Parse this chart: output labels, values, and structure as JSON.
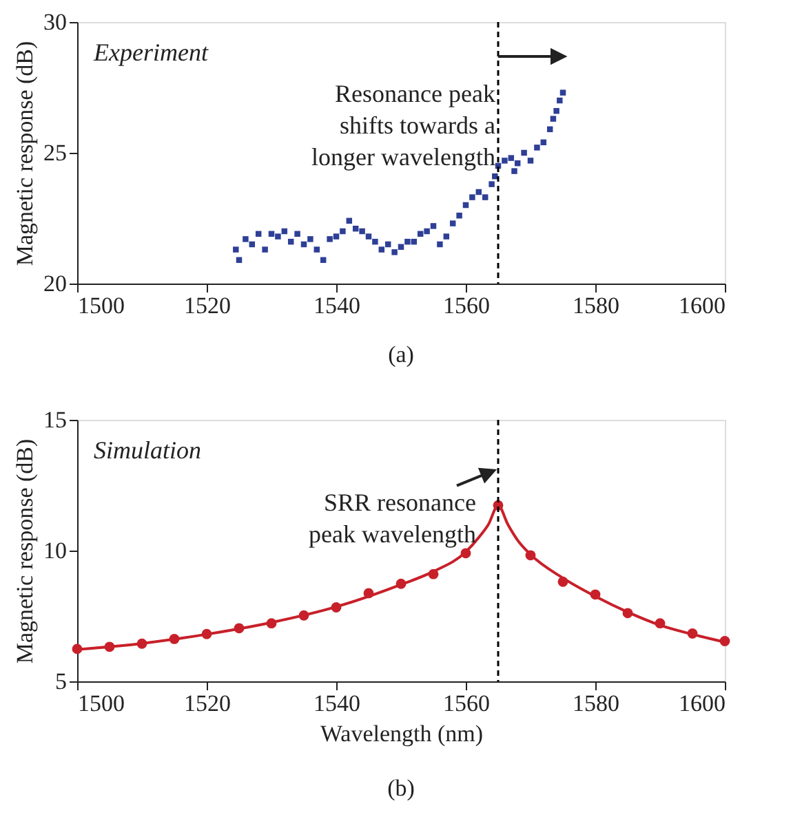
{
  "chart_data": [
    {
      "type": "scatter",
      "ylabel": "Magnetic response (dB)",
      "marker": "square",
      "color": "#2e3f96",
      "grid": false,
      "annotations": [
        "Experiment",
        "(a)",
        "Resonance peak\nshifts towards a\nlonger wavelength"
      ],
      "ref_lines": [
        {
          "axis": "x",
          "value": 1565,
          "color": "#000000",
          "line_style": "dashed"
        }
      ],
      "xlim": [
        1500,
        1600
      ],
      "xticks": [
        1500,
        1520,
        1540,
        1560,
        1580,
        1600
      ],
      "ylim": [
        20,
        30
      ],
      "yticks": [
        20,
        25,
        30
      ],
      "x": [
        1524.5,
        1525,
        1526,
        1527,
        1528,
        1529,
        1530,
        1531,
        1532,
        1533,
        1534,
        1535,
        1536,
        1537,
        1538,
        1539,
        1540,
        1541,
        1542,
        1543,
        1544,
        1545,
        1546,
        1547,
        1548,
        1549,
        1550,
        1551,
        1552,
        1553,
        1554,
        1555,
        1556,
        1557,
        1558,
        1559,
        1560,
        1561,
        1562,
        1563,
        1564,
        1564.5,
        1565,
        1566,
        1567,
        1567.5,
        1568,
        1569,
        1570,
        1571,
        1572,
        1573,
        1573.5,
        1574,
        1574.5,
        1575
      ],
      "values": [
        21.3,
        20.9,
        21.7,
        21.5,
        21.9,
        21.3,
        21.9,
        21.8,
        22.0,
        21.6,
        21.9,
        21.5,
        21.7,
        21.3,
        20.9,
        21.7,
        21.8,
        22.0,
        22.4,
        22.1,
        22.0,
        21.8,
        21.6,
        21.3,
        21.5,
        21.2,
        21.4,
        21.6,
        21.6,
        21.9,
        22.0,
        22.2,
        21.5,
        21.8,
        22.3,
        22.6,
        23.0,
        23.3,
        23.5,
        23.3,
        23.8,
        24.1,
        24.5,
        24.7,
        24.8,
        24.3,
        24.6,
        25.0,
        24.7,
        25.2,
        25.4,
        25.9,
        26.3,
        26.6,
        27.0,
        27.3
      ]
    },
    {
      "type": "scatter",
      "xlabel": "Wavelength (nm)",
      "ylabel": "Magnetic response (dB)",
      "grid": false,
      "annotations": [
        "Simulation",
        "(b)",
        "SRR resonance\npeak wavelength"
      ],
      "ref_lines": [
        {
          "axis": "x",
          "value": 1565,
          "color": "#000000",
          "line_style": "dashed"
        }
      ],
      "xlim": [
        1500,
        1600
      ],
      "xticks": [
        1500,
        1520,
        1540,
        1560,
        1580,
        1600
      ],
      "ylim": [
        5,
        15
      ],
      "yticks": [
        5,
        10,
        15
      ],
      "series": [
        {
          "type": "line",
          "color": "#c8202a",
          "marker": "none",
          "line_style": "solid",
          "x": [
            1500,
            1510,
            1520,
            1530,
            1540,
            1550,
            1555,
            1560,
            1562,
            1563.5,
            1565,
            1566.5,
            1568,
            1570,
            1575,
            1580,
            1585,
            1590,
            1595,
            1600
          ],
          "values": [
            6.22,
            6.45,
            6.8,
            7.25,
            7.85,
            8.7,
            9.2,
            9.95,
            10.5,
            11.0,
            11.73,
            11.0,
            10.4,
            9.85,
            8.95,
            8.25,
            7.65,
            7.15,
            6.8,
            6.5
          ]
        },
        {
          "type": "scatter",
          "color": "#c8202a",
          "marker": "circle",
          "x": [
            1500,
            1505,
            1510,
            1515,
            1520,
            1525,
            1530,
            1535,
            1540,
            1545,
            1550,
            1555,
            1560,
            1565,
            1570,
            1575,
            1580,
            1585,
            1590,
            1595,
            1600
          ],
          "values": [
            6.24,
            6.32,
            6.44,
            6.62,
            6.81,
            7.03,
            7.22,
            7.52,
            7.83,
            8.37,
            8.73,
            9.1,
            9.9,
            11.73,
            9.82,
            8.81,
            8.32,
            7.61,
            7.22,
            6.83,
            6.54
          ]
        }
      ]
    }
  ]
}
